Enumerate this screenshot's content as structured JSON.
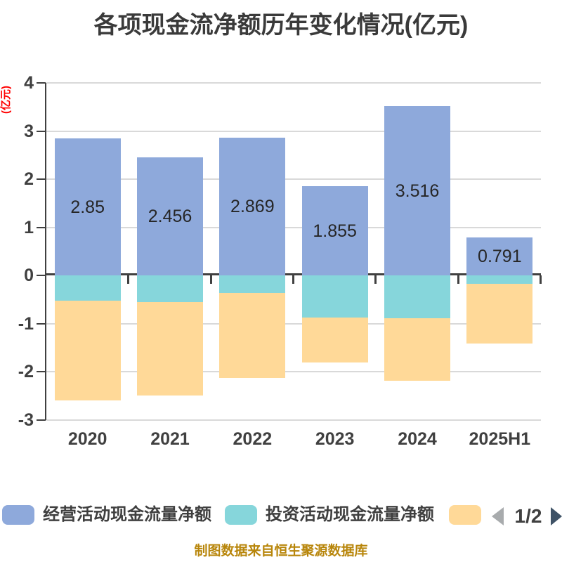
{
  "title": "各项现金流净额历年变化情况(亿元)",
  "y_axis_name": "(亿元)",
  "caption": "制图数据来自恒生聚源数据库",
  "legend": {
    "items": [
      {
        "label": "经营活动现金流量净额",
        "color": "#8EA9DB"
      },
      {
        "label": "投资活动现金流量净额",
        "color": "#86D6DB"
      },
      {
        "label": "",
        "color": "#FFD998"
      }
    ],
    "pagination": {
      "page": "1/2",
      "prev_color": "#A8ABAD",
      "next_color": "#3E5266"
    }
  },
  "chart_data": {
    "type": "bar",
    "stacked": true,
    "title": "各项现金流净额历年变化情况(亿元)",
    "y_axis_name": "(亿元)",
    "categories": [
      "2020",
      "2021",
      "2022",
      "2023",
      "2024",
      "2025H1"
    ],
    "series": [
      {
        "name": "经营活动现金流量净额",
        "color": "#8EA9DB",
        "values": [
          2.85,
          2.456,
          2.869,
          1.855,
          3.516,
          0.791
        ],
        "data_labels": [
          "2.85",
          "2.456",
          "2.869",
          "1.855",
          "3.516",
          "0.791"
        ]
      },
      {
        "name": "投资活动现金流量净额",
        "color": "#86D6DB",
        "values": [
          -0.52,
          -0.55,
          -0.36,
          -0.87,
          -0.89,
          -0.17
        ],
        "values_estimated": true
      },
      {
        "name": "",
        "color": "#FFD998",
        "values": [
          -2.07,
          -1.94,
          -1.77,
          -0.94,
          -1.29,
          -1.24
        ],
        "values_estimated": true
      }
    ],
    "ylim": [
      -3,
      4
    ],
    "y_ticks": [
      4,
      3,
      2,
      1,
      0,
      -1,
      -2,
      -3
    ],
    "grid": true,
    "gridline_color": "#D9D9D9",
    "axis_color": "#404040",
    "legend_position": "bottom"
  }
}
